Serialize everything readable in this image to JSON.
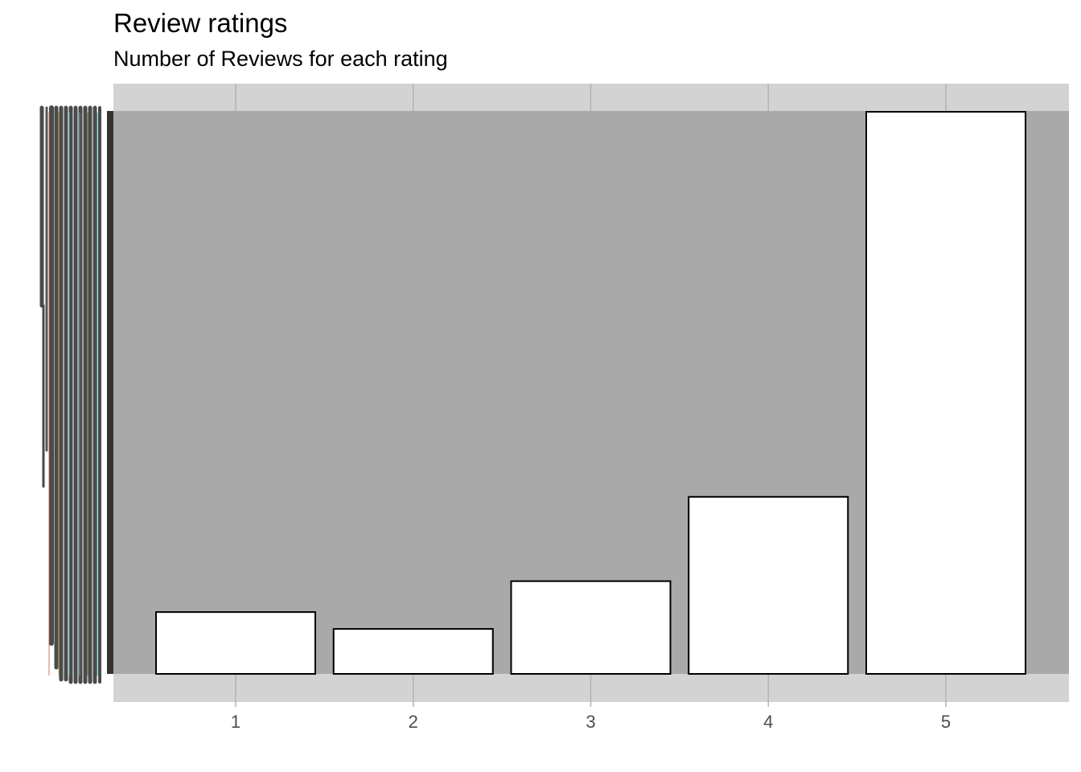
{
  "title": "Review ratings",
  "subtitle": "Number of Reviews for each rating",
  "colors": {
    "panel_outer": "#d3d3d3",
    "panel_inner": "#a9a9a9",
    "grid": "#b3b3b3",
    "bar_fill": "#ffffff",
    "bar_stroke": "#000000",
    "axis_bar": "#333333",
    "tick_text": "#4d4d4d"
  },
  "chart_data": {
    "type": "bar",
    "categories": [
      "1",
      "2",
      "3",
      "4",
      "5"
    ],
    "values": [
      11,
      8,
      16.5,
      31.5,
      100
    ],
    "title": "Review ratings",
    "subtitle": "Number of Reviews for each rating",
    "xlabel": "",
    "ylabel": "",
    "ylim": [
      0,
      100
    ],
    "grid": true,
    "legend": "none"
  }
}
